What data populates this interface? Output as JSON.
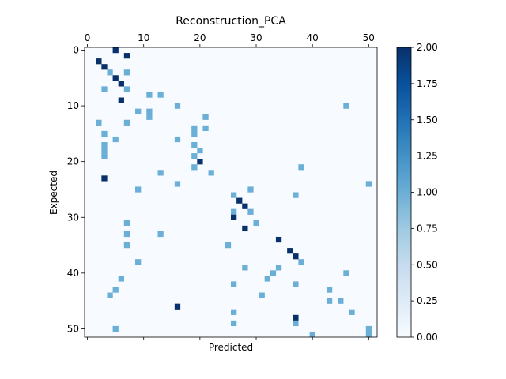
{
  "chart_data": {
    "type": "heatmap",
    "title": "Reconstruction_PCA",
    "xlabel": "Predicted",
    "ylabel": "Expected",
    "n_rows": 52,
    "n_cols": 52,
    "xlim": [
      -0.5,
      51.5
    ],
    "ylim": [
      51.5,
      -0.5
    ],
    "x_ticks": [
      0,
      10,
      20,
      30,
      40,
      50
    ],
    "x_tick_position": "top",
    "y_ticks": [
      0,
      10,
      20,
      30,
      40,
      50
    ],
    "vmin": 0,
    "vmax": 2,
    "colormap": "Blues",
    "colorbar_ticks": [
      "0.00",
      "0.25",
      "0.50",
      "0.75",
      "1.00",
      "1.25",
      "1.50",
      "1.75",
      "2.00"
    ],
    "background_value": 0,
    "cells": [
      [
        0,
        5,
        2
      ],
      [
        1,
        7,
        2
      ],
      [
        2,
        2,
        2
      ],
      [
        3,
        3,
        2
      ],
      [
        4,
        4,
        1
      ],
      [
        4,
        7,
        1
      ],
      [
        5,
        5,
        2
      ],
      [
        6,
        6,
        2
      ],
      [
        7,
        3,
        1
      ],
      [
        7,
        7,
        1
      ],
      [
        8,
        11,
        1
      ],
      [
        8,
        13,
        1
      ],
      [
        9,
        6,
        2
      ],
      [
        10,
        16,
        1
      ],
      [
        10,
        46,
        1
      ],
      [
        11,
        9,
        1
      ],
      [
        11,
        11,
        1
      ],
      [
        12,
        11,
        1
      ],
      [
        12,
        21,
        1
      ],
      [
        13,
        2,
        1
      ],
      [
        13,
        7,
        1
      ],
      [
        14,
        19,
        1
      ],
      [
        14,
        21,
        1
      ],
      [
        15,
        3,
        1
      ],
      [
        15,
        19,
        1
      ],
      [
        16,
        5,
        1
      ],
      [
        16,
        16,
        1
      ],
      [
        17,
        3,
        1
      ],
      [
        17,
        19,
        1
      ],
      [
        18,
        3,
        1
      ],
      [
        18,
        20,
        1
      ],
      [
        19,
        3,
        1
      ],
      [
        19,
        19,
        1
      ],
      [
        20,
        20,
        2
      ],
      [
        21,
        19,
        1
      ],
      [
        21,
        38,
        1
      ],
      [
        22,
        13,
        1
      ],
      [
        22,
        22,
        1
      ],
      [
        23,
        3,
        2
      ],
      [
        24,
        16,
        1
      ],
      [
        24,
        50,
        1
      ],
      [
        25,
        9,
        1
      ],
      [
        25,
        29,
        1
      ],
      [
        26,
        26,
        1
      ],
      [
        26,
        37,
        1
      ],
      [
        27,
        27,
        2
      ],
      [
        28,
        28,
        2
      ],
      [
        29,
        26,
        1
      ],
      [
        29,
        29,
        1
      ],
      [
        30,
        26,
        2
      ],
      [
        31,
        7,
        1
      ],
      [
        31,
        30,
        1
      ],
      [
        32,
        28,
        2
      ],
      [
        33,
        7,
        1
      ],
      [
        33,
        13,
        1
      ],
      [
        34,
        34,
        2
      ],
      [
        35,
        7,
        1
      ],
      [
        35,
        25,
        1
      ],
      [
        36,
        36,
        2
      ],
      [
        37,
        37,
        2
      ],
      [
        38,
        9,
        1
      ],
      [
        38,
        38,
        1
      ],
      [
        39,
        28,
        1
      ],
      [
        39,
        34,
        1
      ],
      [
        40,
        33,
        1
      ],
      [
        40,
        46,
        1
      ],
      [
        41,
        6,
        1
      ],
      [
        41,
        32,
        1
      ],
      [
        42,
        26,
        1
      ],
      [
        42,
        37,
        1
      ],
      [
        43,
        5,
        1
      ],
      [
        43,
        43,
        1
      ],
      [
        44,
        4,
        1
      ],
      [
        44,
        31,
        1
      ],
      [
        45,
        43,
        1
      ],
      [
        45,
        45,
        1
      ],
      [
        46,
        16,
        2
      ],
      [
        47,
        26,
        1
      ],
      [
        47,
        47,
        1
      ],
      [
        48,
        37,
        2
      ],
      [
        49,
        26,
        1
      ],
      [
        49,
        37,
        1
      ],
      [
        50,
        5,
        1
      ],
      [
        50,
        50,
        1
      ],
      [
        51,
        40,
        1
      ],
      [
        51,
        50,
        1
      ]
    ]
  }
}
